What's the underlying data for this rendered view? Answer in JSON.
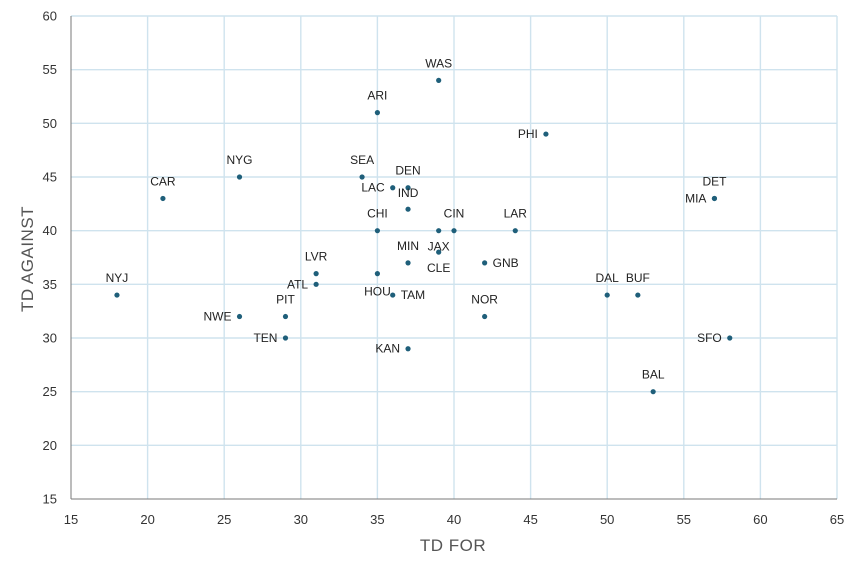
{
  "chart_data": {
    "type": "scatter",
    "title": "",
    "xlabel": "TD FOR",
    "ylabel": "TD AGAINST",
    "xlim": [
      15,
      65
    ],
    "ylim": [
      15,
      60
    ],
    "x_ticks": [
      15,
      20,
      25,
      30,
      35,
      40,
      45,
      50,
      55,
      60,
      65
    ],
    "y_ticks": [
      15,
      20,
      25,
      30,
      35,
      40,
      45,
      50,
      55,
      60
    ],
    "grid": true,
    "legend": "none",
    "marker_color": "#1f5f7a",
    "points": [
      {
        "label": "WAS",
        "x": 39,
        "y": 54
      },
      {
        "label": "ARI",
        "x": 35,
        "y": 51
      },
      {
        "label": "PHI",
        "x": 46,
        "y": 49
      },
      {
        "label": "NYG",
        "x": 26,
        "y": 45
      },
      {
        "label": "SEA",
        "x": 34,
        "y": 45
      },
      {
        "label": "DEN",
        "x": 37,
        "y": 44
      },
      {
        "label": "LAC",
        "x": 36,
        "y": 44
      },
      {
        "label": "CAR",
        "x": 21,
        "y": 43
      },
      {
        "label": "DET",
        "x": 57,
        "y": 43
      },
      {
        "label": "MIA",
        "x": 57,
        "y": 43
      },
      {
        "label": "IND",
        "x": 37,
        "y": 42
      },
      {
        "label": "CHI",
        "x": 35,
        "y": 40
      },
      {
        "label": "CIN",
        "x": 40,
        "y": 40
      },
      {
        "label": "LAR",
        "x": 44,
        "y": 40
      },
      {
        "label": "MIN",
        "x": 37,
        "y": 37
      },
      {
        "label": "JAX",
        "x": 39,
        "y": 40
      },
      {
        "label": "CLE",
        "x": 39,
        "y": 38
      },
      {
        "label": "GNB",
        "x": 42,
        "y": 37
      },
      {
        "label": "LVR",
        "x": 31,
        "y": 36
      },
      {
        "label": "ATL",
        "x": 31,
        "y": 35
      },
      {
        "label": "HOU",
        "x": 35,
        "y": 36
      },
      {
        "label": "TAM",
        "x": 36,
        "y": 34
      },
      {
        "label": "NYJ",
        "x": 18,
        "y": 34
      },
      {
        "label": "DAL",
        "x": 50,
        "y": 34
      },
      {
        "label": "BUF",
        "x": 52,
        "y": 34
      },
      {
        "label": "PIT",
        "x": 29,
        "y": 32
      },
      {
        "label": "NWE",
        "x": 26,
        "y": 32
      },
      {
        "label": "NOR",
        "x": 42,
        "y": 32
      },
      {
        "label": "TEN",
        "x": 29,
        "y": 30
      },
      {
        "label": "SFO",
        "x": 58,
        "y": 30
      },
      {
        "label": "KAN",
        "x": 37,
        "y": 29
      },
      {
        "label": "BAL",
        "x": 53,
        "y": 25
      }
    ]
  }
}
